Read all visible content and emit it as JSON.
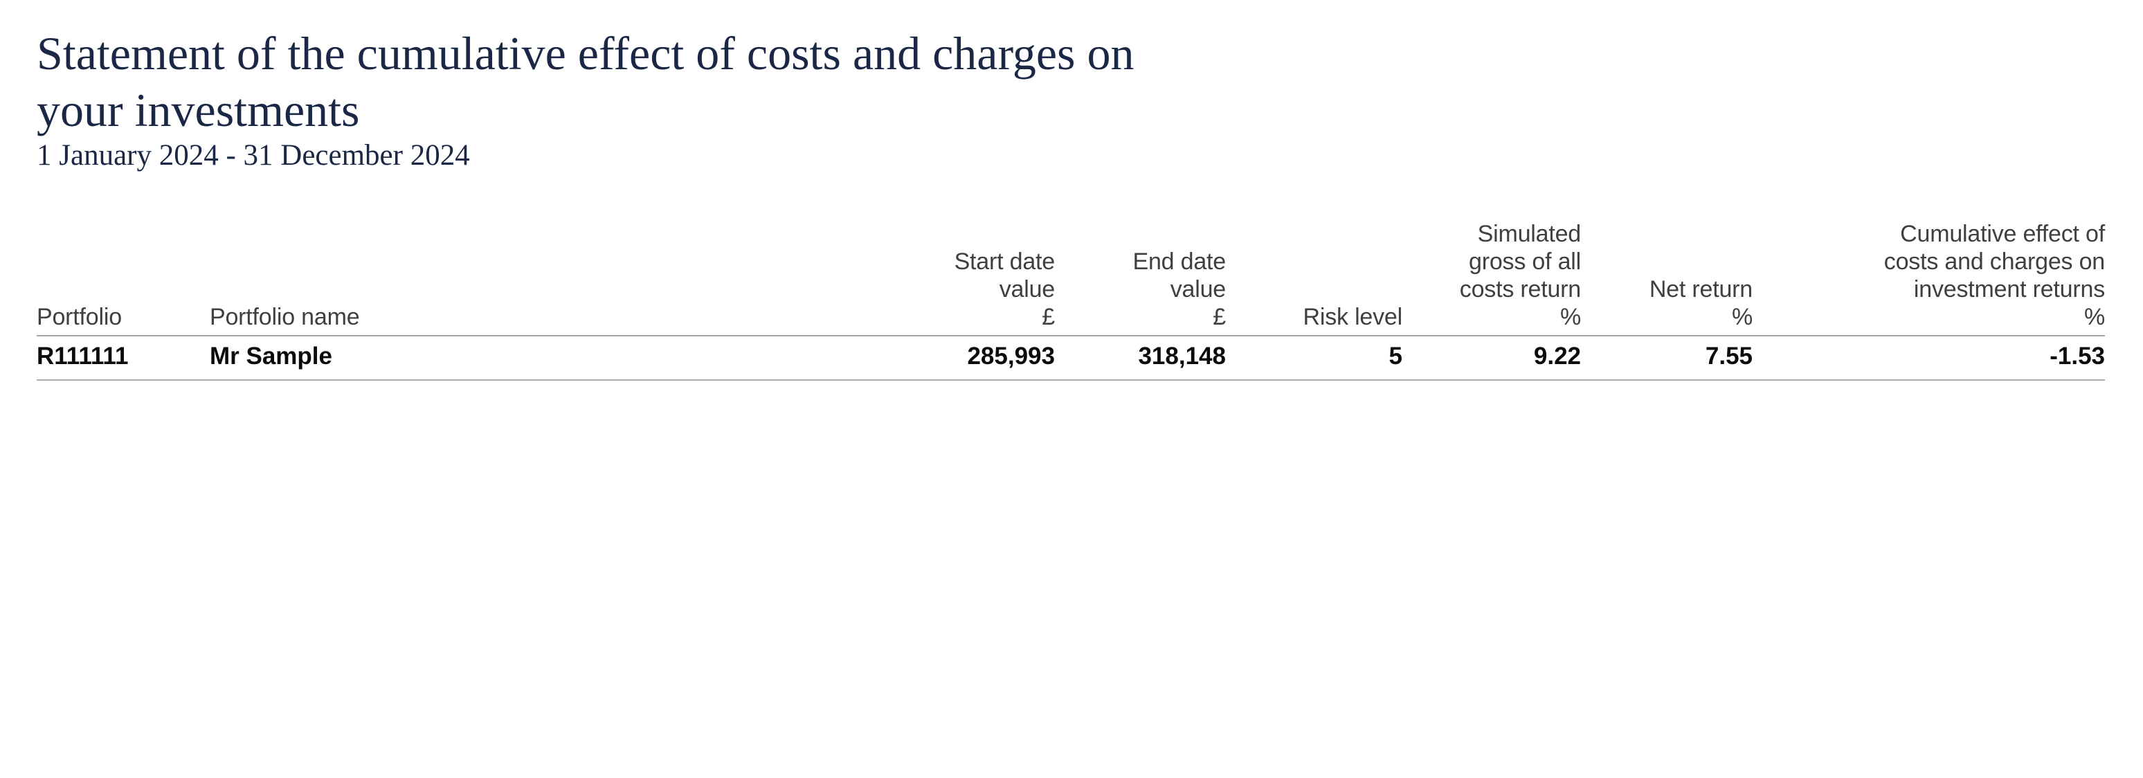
{
  "header": {
    "title_lines": [
      "Statement of the cumulative effect of costs and charges on",
      "your investments"
    ],
    "period": "1 January 2024 - 31 December 2024"
  },
  "colors": {
    "navy": "#1a2745",
    "header_gray": "#3f3f3f",
    "text_black": "#0b0b0b",
    "negative_red": "#d02a23",
    "rule_gray": "#a4a4a4",
    "rule_gray_light": "#ababab"
  },
  "table": {
    "columns": [
      {
        "id": "portfolio",
        "header_lines": [
          "Portfolio"
        ]
      },
      {
        "id": "portfolio_name",
        "header_lines": [
          "Portfolio name"
        ]
      },
      {
        "id": "start_date_value",
        "header_lines": [
          "Start date",
          "value",
          "£"
        ]
      },
      {
        "id": "end_date_value",
        "header_lines": [
          "End date",
          "value",
          "£"
        ]
      },
      {
        "id": "risk_level",
        "header_lines": [
          "Risk level"
        ]
      },
      {
        "id": "gross_return",
        "header_lines": [
          "Simulated",
          "gross of all",
          "costs return",
          "%"
        ]
      },
      {
        "id": "net_return",
        "header_lines": [
          "Net return",
          "%"
        ]
      },
      {
        "id": "cumulative_effect",
        "header_lines": [
          "Cumulative effect of",
          "costs and charges on",
          "investment returns",
          "%"
        ]
      }
    ],
    "rows": [
      {
        "portfolio": "R111111",
        "portfolio_name": "Mr Sample",
        "start_date_value": "285,993",
        "end_date_value": "318,148",
        "risk_level": "5",
        "gross_return": "9.22",
        "net_return": "7.55",
        "cumulative_effect": "-1.53",
        "cumulative_effect_is_negative": true
      }
    ]
  }
}
